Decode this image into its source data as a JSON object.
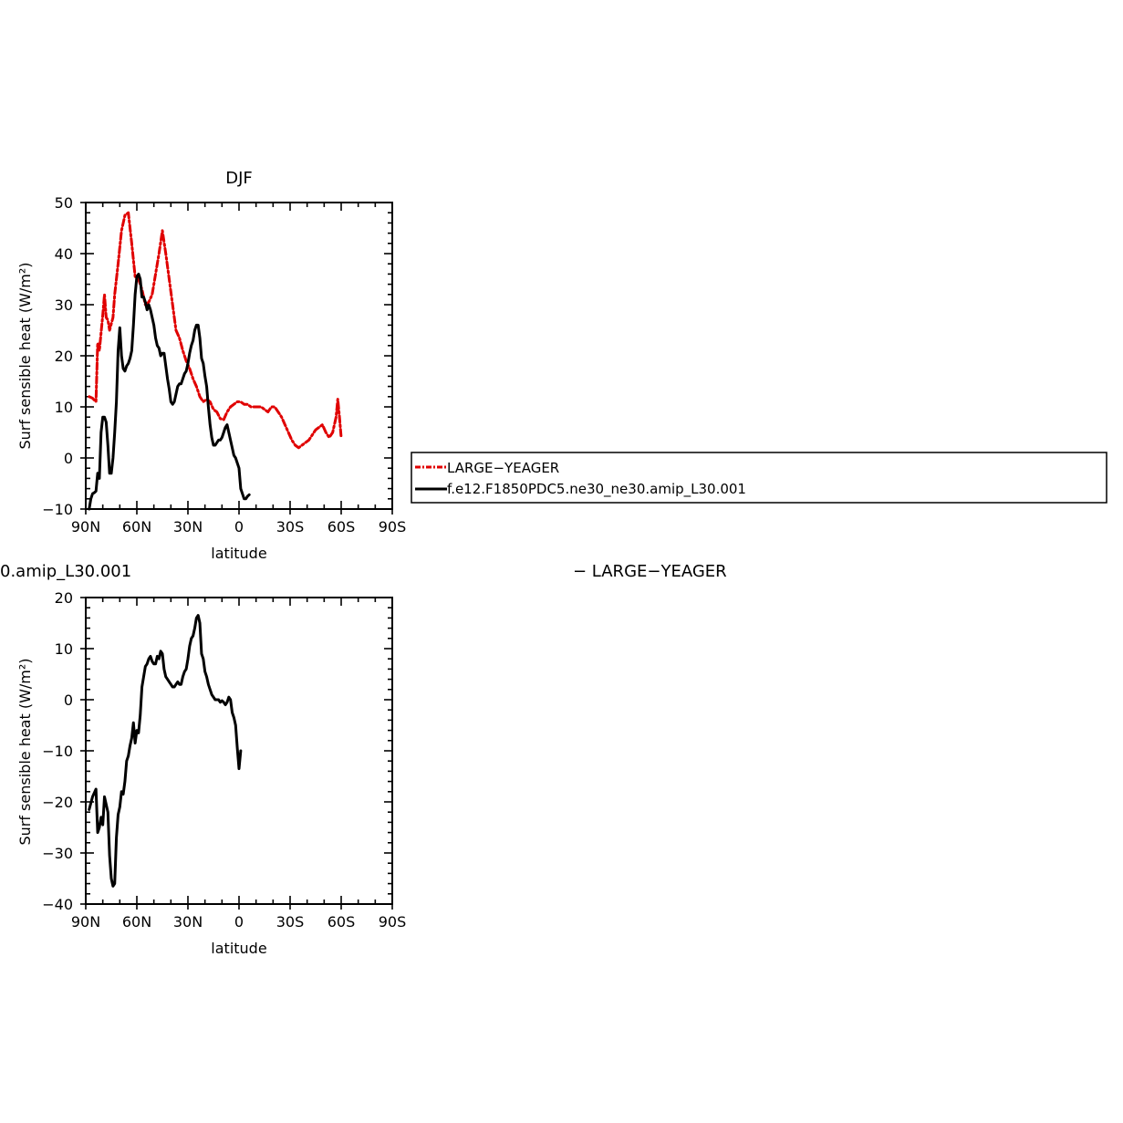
{
  "colors": {
    "model": "#000000",
    "obs": "#e00000"
  },
  "legend": {
    "entries": [
      {
        "name": "LARGE−YEAGER",
        "style": "dashed",
        "color": "#e00000"
      },
      {
        "name": "f.e12.F1850PDC5.ne30_ne30.amip_L30.001",
        "style": "solid",
        "color": "#000000"
      }
    ]
  },
  "chart_data": [
    {
      "type": "line",
      "title": "DJF",
      "xlabel": "latitude",
      "ylabel": "Surf sensible heat (W/m²)",
      "xlim": [
        90,
        -90
      ],
      "ylim": [
        -10,
        50
      ],
      "xticks": [
        {
          "value": 90,
          "label": "90N"
        },
        {
          "value": 60,
          "label": "60N"
        },
        {
          "value": 30,
          "label": "30N"
        },
        {
          "value": 0,
          "label": "0"
        },
        {
          "value": -30,
          "label": "30S"
        },
        {
          "value": -60,
          "label": "60S"
        },
        {
          "value": -90,
          "label": "90S"
        }
      ],
      "yticks": [
        -10,
        0,
        10,
        20,
        30,
        40,
        50
      ],
      "series": [
        {
          "name": "LARGE−YEAGER",
          "style": "dashed",
          "color": "#e00000",
          "points": [
            [
              88,
              12
            ],
            [
              86,
              11.7
            ],
            [
              84,
              11
            ],
            [
              83,
              22.5
            ],
            [
              82,
              21
            ],
            [
              80,
              28
            ],
            [
              79,
              32
            ],
            [
              78,
              27.5
            ],
            [
              77,
              27
            ],
            [
              76,
              25
            ],
            [
              74,
              27.5
            ],
            [
              73,
              32
            ],
            [
              71,
              38
            ],
            [
              69,
              44.5
            ],
            [
              67,
              47.5
            ],
            [
              65,
              48
            ],
            [
              63,
              42
            ],
            [
              61,
              35.5
            ],
            [
              59,
              35
            ],
            [
              57,
              33
            ],
            [
              55,
              30
            ],
            [
              53,
              30.5
            ],
            [
              51,
              32
            ],
            [
              49,
              36
            ],
            [
              47,
              40
            ],
            [
              45,
              44.5
            ],
            [
              43,
              40
            ],
            [
              41,
              35
            ],
            [
              39,
              30
            ],
            [
              37,
              25
            ],
            [
              35,
              23.5
            ],
            [
              33,
              21
            ],
            [
              31,
              19
            ],
            [
              29,
              17.5
            ],
            [
              27,
              15.5
            ],
            [
              25,
              14
            ],
            [
              23,
              12
            ],
            [
              21,
              11
            ],
            [
              19,
              11.5
            ],
            [
              17,
              11
            ],
            [
              15,
              9.5
            ],
            [
              13,
              9
            ],
            [
              11,
              7.7
            ],
            [
              9,
              7.5
            ],
            [
              7,
              9
            ],
            [
              5,
              10
            ],
            [
              3,
              10.5
            ],
            [
              1,
              11
            ],
            [
              -1,
              11
            ],
            [
              -3,
              10.5
            ],
            [
              -5,
              10.5
            ],
            [
              -7,
              10
            ],
            [
              -9,
              10
            ],
            [
              -11,
              10
            ],
            [
              -13,
              10
            ],
            [
              -15,
              9.5
            ],
            [
              -17,
              9
            ],
            [
              -19,
              10
            ],
            [
              -21,
              10
            ],
            [
              -23,
              9
            ],
            [
              -25,
              8
            ],
            [
              -27,
              6.5
            ],
            [
              -29,
              5
            ],
            [
              -31,
              3.5
            ],
            [
              -33,
              2.5
            ],
            [
              -35,
              2
            ],
            [
              -37,
              2.5
            ],
            [
              -39,
              3
            ],
            [
              -41,
              3.5
            ],
            [
              -43,
              4.5
            ],
            [
              -45,
              5.5
            ],
            [
              -47,
              6
            ],
            [
              -49,
              6.5
            ],
            [
              -51,
              5
            ],
            [
              -53,
              4
            ],
            [
              -55,
              5
            ],
            [
              -57,
              8
            ],
            [
              -58,
              11.5
            ],
            [
              -59,
              8
            ],
            [
              -60,
              4
            ]
          ]
        },
        {
          "name": "f.e12.F1850PDC5.ne30_ne30.amip_L30.001",
          "style": "solid",
          "color": "#000000",
          "points": [
            [
              88,
              -10
            ],
            [
              87,
              -8
            ],
            [
              86,
              -7
            ],
            [
              85,
              -6.8
            ],
            [
              84,
              -6.5
            ],
            [
              83,
              -3
            ],
            [
              82,
              -4
            ],
            [
              81,
              5
            ],
            [
              80,
              8
            ],
            [
              79,
              8
            ],
            [
              78,
              7
            ],
            [
              77,
              2.5
            ],
            [
              76,
              -3
            ],
            [
              75,
              -3
            ],
            [
              74,
              0
            ],
            [
              73,
              5
            ],
            [
              72,
              11
            ],
            [
              71,
              21
            ],
            [
              70,
              25.5
            ],
            [
              69,
              20
            ],
            [
              68,
              17.5
            ],
            [
              67,
              17
            ],
            [
              66,
              18
            ],
            [
              65,
              18.5
            ],
            [
              64,
              19.5
            ],
            [
              63,
              21
            ],
            [
              62,
              26
            ],
            [
              61,
              32
            ],
            [
              60,
              35.5
            ],
            [
              59,
              36
            ],
            [
              58,
              35
            ],
            [
              57,
              31.5
            ],
            [
              56,
              31.5
            ],
            [
              55,
              30.5
            ],
            [
              54,
              29
            ],
            [
              53,
              30
            ],
            [
              52,
              29
            ],
            [
              51,
              27.5
            ],
            [
              50,
              26
            ],
            [
              49,
              23.5
            ],
            [
              48,
              22
            ],
            [
              47,
              21.5
            ],
            [
              46,
              20
            ],
            [
              45,
              20.5
            ],
            [
              44,
              20.5
            ],
            [
              43,
              18
            ],
            [
              42,
              15.5
            ],
            [
              41,
              13.5
            ],
            [
              40,
              11
            ],
            [
              39,
              10.5
            ],
            [
              38,
              11
            ],
            [
              37,
              12.5
            ],
            [
              36,
              14
            ],
            [
              35,
              14.5
            ],
            [
              34,
              14.5
            ],
            [
              33,
              15.5
            ],
            [
              32,
              16.5
            ],
            [
              31,
              17
            ],
            [
              30,
              18.5
            ],
            [
              29,
              20.5
            ],
            [
              28,
              22
            ],
            [
              27,
              23
            ],
            [
              26,
              25
            ],
            [
              25,
              26
            ],
            [
              24,
              26
            ],
            [
              23,
              23.5
            ],
            [
              22,
              19.5
            ],
            [
              21,
              18.5
            ],
            [
              20,
              16
            ],
            [
              19,
              14
            ],
            [
              18,
              10
            ],
            [
              17,
              6.5
            ],
            [
              16,
              4
            ],
            [
              15,
              2.5
            ],
            [
              14,
              2.5
            ],
            [
              13,
              3
            ],
            [
              12,
              3.5
            ],
            [
              11,
              3.5
            ],
            [
              10,
              4
            ],
            [
              9,
              5
            ],
            [
              8,
              6
            ],
            [
              7,
              6.5
            ],
            [
              6,
              5
            ],
            [
              5,
              3.5
            ],
            [
              4,
              2
            ],
            [
              3,
              0.5
            ],
            [
              2,
              0
            ],
            [
              1,
              -1
            ],
            [
              0,
              -2
            ],
            [
              -1,
              -6
            ],
            [
              -2,
              -7
            ],
            [
              -3,
              -8
            ],
            [
              -4,
              -8
            ],
            [
              -5,
              -7.5
            ],
            [
              -6,
              -7.2
            ]
          ]
        }
      ]
    },
    {
      "type": "line",
      "title": "0.amip_L30.001",
      "title_right": "− LARGE−YEAGER",
      "xlabel": "latitude",
      "ylabel": "Surf sensible heat (W/m²)",
      "xlim": [
        90,
        -90
      ],
      "ylim": [
        -40,
        20
      ],
      "xticks": [
        {
          "value": 90,
          "label": "90N"
        },
        {
          "value": 60,
          "label": "60N"
        },
        {
          "value": 30,
          "label": "30N"
        },
        {
          "value": 0,
          "label": "0"
        },
        {
          "value": -30,
          "label": "30S"
        },
        {
          "value": -60,
          "label": "60S"
        },
        {
          "value": -90,
          "label": "90S"
        }
      ],
      "yticks": [
        -40,
        -30,
        -20,
        -10,
        0,
        10,
        20
      ],
      "series": [
        {
          "style": "solid",
          "color": "#000000",
          "points": [
            [
              88,
              -21.5
            ],
            [
              86,
              -19
            ],
            [
              84,
              -17.5
            ],
            [
              83,
              -26
            ],
            [
              82,
              -25
            ],
            [
              81,
              -23
            ],
            [
              80,
              -24.5
            ],
            [
              79,
              -19
            ],
            [
              78,
              -20.5
            ],
            [
              77,
              -22
            ],
            [
              76,
              -30.5
            ],
            [
              75,
              -35
            ],
            [
              74,
              -36.5
            ],
            [
              73,
              -36
            ],
            [
              72,
              -27
            ],
            [
              71,
              -22.5
            ],
            [
              70,
              -21
            ],
            [
              69,
              -18
            ],
            [
              68,
              -18.5
            ],
            [
              67,
              -16
            ],
            [
              66,
              -12
            ],
            [
              65,
              -11
            ],
            [
              64,
              -9
            ],
            [
              63,
              -7.5
            ],
            [
              62,
              -4.5
            ],
            [
              61,
              -8.5
            ],
            [
              60,
              -6
            ],
            [
              59,
              -6.5
            ],
            [
              58,
              -3
            ],
            [
              57,
              2.5
            ],
            [
              56,
              4.5
            ],
            [
              55,
              6.5
            ],
            [
              54,
              7
            ],
            [
              53,
              8
            ],
            [
              52,
              8.5
            ],
            [
              51,
              7.5
            ],
            [
              50,
              7
            ],
            [
              49,
              7
            ],
            [
              48,
              8.5
            ],
            [
              47,
              8
            ],
            [
              46,
              9.5
            ],
            [
              45,
              9
            ],
            [
              44,
              6
            ],
            [
              43,
              4.5
            ],
            [
              42,
              4
            ],
            [
              41,
              3.5
            ],
            [
              40,
              3
            ],
            [
              39,
              2.5
            ],
            [
              38,
              2.5
            ],
            [
              37,
              3
            ],
            [
              36,
              3.5
            ],
            [
              35,
              3
            ],
            [
              34,
              3
            ],
            [
              33,
              4.5
            ],
            [
              32,
              5.5
            ],
            [
              31,
              6
            ],
            [
              30,
              8
            ],
            [
              29,
              10.5
            ],
            [
              28,
              12
            ],
            [
              27,
              12.5
            ],
            [
              26,
              14
            ],
            [
              25,
              16
            ],
            [
              24,
              16.5
            ],
            [
              23,
              15
            ],
            [
              22,
              9
            ],
            [
              21,
              8
            ],
            [
              20,
              5.5
            ],
            [
              19,
              4.5
            ],
            [
              18,
              3
            ],
            [
              17,
              2
            ],
            [
              16,
              1
            ],
            [
              15,
              0.5
            ],
            [
              14,
              0
            ],
            [
              13,
              0
            ],
            [
              12,
              0
            ],
            [
              11,
              -0.5
            ],
            [
              10,
              -0.2
            ],
            [
              9,
              -0.5
            ],
            [
              8,
              -1
            ],
            [
              7,
              -0.5
            ],
            [
              6,
              0.5
            ],
            [
              5,
              0
            ],
            [
              4,
              -2.5
            ],
            [
              3,
              -3.5
            ],
            [
              2,
              -5
            ],
            [
              1,
              -9.5
            ],
            [
              0,
              -13.5
            ],
            [
              -1,
              -10
            ]
          ]
        }
      ]
    }
  ]
}
